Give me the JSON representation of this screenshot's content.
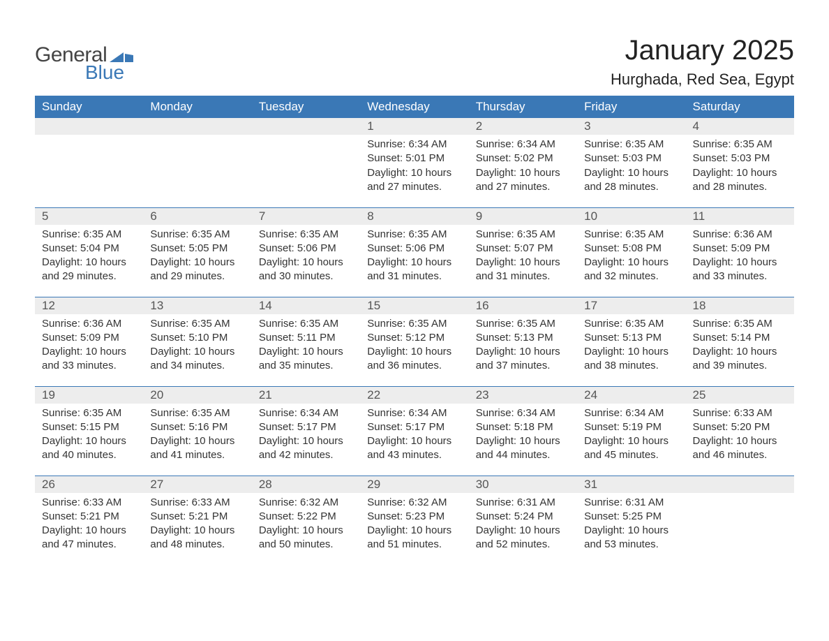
{
  "brand": {
    "word1": "General",
    "word2": "Blue",
    "flag_color": "#3a78b6"
  },
  "title": "January 2025",
  "location": "Hurghada, Red Sea, Egypt",
  "colors": {
    "header_bg": "#3a78b6",
    "header_text": "#ffffff",
    "daynum_bg": "#ededed",
    "cell_border": "#3a78b6",
    "body_text": "#333333"
  },
  "weekdays": [
    "Sunday",
    "Monday",
    "Tuesday",
    "Wednesday",
    "Thursday",
    "Friday",
    "Saturday"
  ],
  "weeks": [
    [
      null,
      null,
      null,
      {
        "n": "1",
        "sr": "6:34 AM",
        "ss": "5:01 PM",
        "dl": "10 hours and 27 minutes."
      },
      {
        "n": "2",
        "sr": "6:34 AM",
        "ss": "5:02 PM",
        "dl": "10 hours and 27 minutes."
      },
      {
        "n": "3",
        "sr": "6:35 AM",
        "ss": "5:03 PM",
        "dl": "10 hours and 28 minutes."
      },
      {
        "n": "4",
        "sr": "6:35 AM",
        "ss": "5:03 PM",
        "dl": "10 hours and 28 minutes."
      }
    ],
    [
      {
        "n": "5",
        "sr": "6:35 AM",
        "ss": "5:04 PM",
        "dl": "10 hours and 29 minutes."
      },
      {
        "n": "6",
        "sr": "6:35 AM",
        "ss": "5:05 PM",
        "dl": "10 hours and 29 minutes."
      },
      {
        "n": "7",
        "sr": "6:35 AM",
        "ss": "5:06 PM",
        "dl": "10 hours and 30 minutes."
      },
      {
        "n": "8",
        "sr": "6:35 AM",
        "ss": "5:06 PM",
        "dl": "10 hours and 31 minutes."
      },
      {
        "n": "9",
        "sr": "6:35 AM",
        "ss": "5:07 PM",
        "dl": "10 hours and 31 minutes."
      },
      {
        "n": "10",
        "sr": "6:35 AM",
        "ss": "5:08 PM",
        "dl": "10 hours and 32 minutes."
      },
      {
        "n": "11",
        "sr": "6:36 AM",
        "ss": "5:09 PM",
        "dl": "10 hours and 33 minutes."
      }
    ],
    [
      {
        "n": "12",
        "sr": "6:36 AM",
        "ss": "5:09 PM",
        "dl": "10 hours and 33 minutes."
      },
      {
        "n": "13",
        "sr": "6:35 AM",
        "ss": "5:10 PM",
        "dl": "10 hours and 34 minutes."
      },
      {
        "n": "14",
        "sr": "6:35 AM",
        "ss": "5:11 PM",
        "dl": "10 hours and 35 minutes."
      },
      {
        "n": "15",
        "sr": "6:35 AM",
        "ss": "5:12 PM",
        "dl": "10 hours and 36 minutes."
      },
      {
        "n": "16",
        "sr": "6:35 AM",
        "ss": "5:13 PM",
        "dl": "10 hours and 37 minutes."
      },
      {
        "n": "17",
        "sr": "6:35 AM",
        "ss": "5:13 PM",
        "dl": "10 hours and 38 minutes."
      },
      {
        "n": "18",
        "sr": "6:35 AM",
        "ss": "5:14 PM",
        "dl": "10 hours and 39 minutes."
      }
    ],
    [
      {
        "n": "19",
        "sr": "6:35 AM",
        "ss": "5:15 PM",
        "dl": "10 hours and 40 minutes."
      },
      {
        "n": "20",
        "sr": "6:35 AM",
        "ss": "5:16 PM",
        "dl": "10 hours and 41 minutes."
      },
      {
        "n": "21",
        "sr": "6:34 AM",
        "ss": "5:17 PM",
        "dl": "10 hours and 42 minutes."
      },
      {
        "n": "22",
        "sr": "6:34 AM",
        "ss": "5:17 PM",
        "dl": "10 hours and 43 minutes."
      },
      {
        "n": "23",
        "sr": "6:34 AM",
        "ss": "5:18 PM",
        "dl": "10 hours and 44 minutes."
      },
      {
        "n": "24",
        "sr": "6:34 AM",
        "ss": "5:19 PM",
        "dl": "10 hours and 45 minutes."
      },
      {
        "n": "25",
        "sr": "6:33 AM",
        "ss": "5:20 PM",
        "dl": "10 hours and 46 minutes."
      }
    ],
    [
      {
        "n": "26",
        "sr": "6:33 AM",
        "ss": "5:21 PM",
        "dl": "10 hours and 47 minutes."
      },
      {
        "n": "27",
        "sr": "6:33 AM",
        "ss": "5:21 PM",
        "dl": "10 hours and 48 minutes."
      },
      {
        "n": "28",
        "sr": "6:32 AM",
        "ss": "5:22 PM",
        "dl": "10 hours and 50 minutes."
      },
      {
        "n": "29",
        "sr": "6:32 AM",
        "ss": "5:23 PM",
        "dl": "10 hours and 51 minutes."
      },
      {
        "n": "30",
        "sr": "6:31 AM",
        "ss": "5:24 PM",
        "dl": "10 hours and 52 minutes."
      },
      {
        "n": "31",
        "sr": "6:31 AM",
        "ss": "5:25 PM",
        "dl": "10 hours and 53 minutes."
      },
      null
    ]
  ],
  "labels": {
    "sunrise": "Sunrise: ",
    "sunset": "Sunset: ",
    "daylight": "Daylight: "
  }
}
